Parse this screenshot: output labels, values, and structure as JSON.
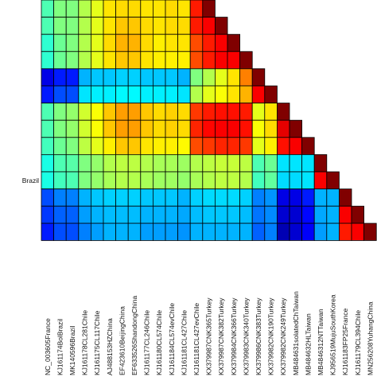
{
  "chart_data": {
    "type": "heatmap",
    "colormap": "jet",
    "clim": [
      0,
      1
    ],
    "x": [
      "NC_003605France",
      "KJ161174BolBrazil",
      "MK140596Brazil",
      "KJ161178CL281Chile",
      "KJ161175CL117Chile",
      "AJ488153HZChina",
      "EF423610BeijingChina",
      "EF633526ShandongChina",
      "KJ161177CL246Chile",
      "KJ161180CL574Chile",
      "KJ161184CL574evChile",
      "KJ161181CL427Chile",
      "KJ161181CL427evChile",
      "KX379987CNK365Turkey",
      "KX379987CNK382Turkey",
      "KX379984CNK366Turkey",
      "KX379983CNK340Turkey",
      "KX379986CNK383Turkey",
      "KX379982CNK190Turkey",
      "KX379982CNK249Turkey",
      "MB484631solatedChTaiwan",
      "MB484632HLTaiwan",
      "MB4846312NTTaiwan",
      "KJ956519MujuSouthKorea",
      "KJ161183FP25France",
      "KJ161179CL394Chile",
      "MN256208YuhangChina"
    ],
    "y": [
      null,
      null,
      null,
      null,
      null,
      null,
      null,
      null,
      null,
      null,
      "Brazil",
      null,
      null,
      null
    ],
    "values": [
      [
        0.45,
        0.5,
        0.5,
        0.55,
        0.6,
        0.65,
        0.66,
        0.66,
        0.65,
        0.65,
        0.66,
        0.65,
        0.85,
        1
      ],
      [
        0.45,
        0.5,
        0.5,
        0.55,
        0.6,
        0.65,
        0.68,
        0.68,
        0.66,
        0.65,
        0.66,
        0.66,
        0.85,
        0.88,
        1
      ],
      [
        0.42,
        0.48,
        0.5,
        0.55,
        0.6,
        0.66,
        0.7,
        0.7,
        0.66,
        0.64,
        0.65,
        0.65,
        0.8,
        0.85,
        0.88,
        1
      ],
      [
        0.42,
        0.48,
        0.5,
        0.55,
        0.6,
        0.65,
        0.68,
        0.68,
        0.65,
        0.64,
        0.64,
        0.64,
        0.8,
        0.85,
        0.88,
        0.88,
        1
      ],
      [
        0.1,
        0.15,
        0.15,
        0.3,
        0.32,
        0.32,
        0.33,
        0.33,
        0.32,
        0.32,
        0.32,
        0.3,
        0.5,
        0.55,
        0.6,
        0.65,
        0.75,
        1
      ],
      [
        0.15,
        0.2,
        0.2,
        0.35,
        0.36,
        0.36,
        0.37,
        0.37,
        0.36,
        0.36,
        0.36,
        0.35,
        0.55,
        0.6,
        0.62,
        0.65,
        0.7,
        0.88,
        1
      ],
      [
        0.45,
        0.5,
        0.52,
        0.58,
        0.62,
        0.68,
        0.72,
        0.72,
        0.68,
        0.66,
        0.67,
        0.66,
        0.82,
        0.85,
        0.86,
        0.86,
        0.85,
        0.6,
        0.65,
        1
      ],
      [
        0.45,
        0.5,
        0.52,
        0.58,
        0.62,
        0.68,
        0.72,
        0.72,
        0.68,
        0.66,
        0.67,
        0.66,
        0.84,
        0.87,
        0.88,
        0.88,
        0.86,
        0.62,
        0.66,
        0.9,
        1
      ],
      [
        0.44,
        0.48,
        0.5,
        0.56,
        0.6,
        0.64,
        0.68,
        0.68,
        0.65,
        0.64,
        0.64,
        0.63,
        0.8,
        0.82,
        0.84,
        0.84,
        0.82,
        0.6,
        0.64,
        0.86,
        0.88,
        1
      ],
      [
        0.4,
        0.45,
        0.46,
        0.5,
        0.52,
        0.55,
        0.56,
        0.56,
        0.55,
        0.54,
        0.54,
        0.53,
        0.55,
        0.56,
        0.57,
        0.57,
        0.56,
        0.45,
        0.48,
        0.35,
        0.35,
        0.35,
        1
      ],
      [
        0.4,
        0.44,
        0.45,
        0.5,
        0.52,
        0.54,
        0.55,
        0.55,
        0.54,
        0.53,
        0.53,
        0.52,
        0.54,
        0.55,
        0.56,
        0.56,
        0.55,
        0.44,
        0.47,
        0.34,
        0.34,
        0.35,
        0.88,
        1
      ],
      [
        0.2,
        0.25,
        0.25,
        0.3,
        0.32,
        0.33,
        0.33,
        0.33,
        0.32,
        0.32,
        0.32,
        0.3,
        0.33,
        0.34,
        0.34,
        0.34,
        0.33,
        0.25,
        0.27,
        0.1,
        0.1,
        0.15,
        0.3,
        0.3,
        1
      ],
      [
        0.18,
        0.22,
        0.22,
        0.28,
        0.3,
        0.31,
        0.31,
        0.31,
        0.3,
        0.3,
        0.3,
        0.29,
        0.31,
        0.32,
        0.32,
        0.32,
        0.31,
        0.24,
        0.26,
        0.08,
        0.08,
        0.13,
        0.29,
        0.3,
        0.88,
        1
      ],
      [
        0.15,
        0.2,
        0.2,
        0.25,
        0.28,
        0.3,
        0.3,
        0.3,
        0.28,
        0.28,
        0.28,
        0.27,
        0.3,
        0.3,
        0.3,
        0.3,
        0.3,
        0.22,
        0.25,
        0.05,
        0.08,
        0.12,
        0.28,
        0.3,
        0.85,
        0.88,
        1
      ]
    ]
  }
}
